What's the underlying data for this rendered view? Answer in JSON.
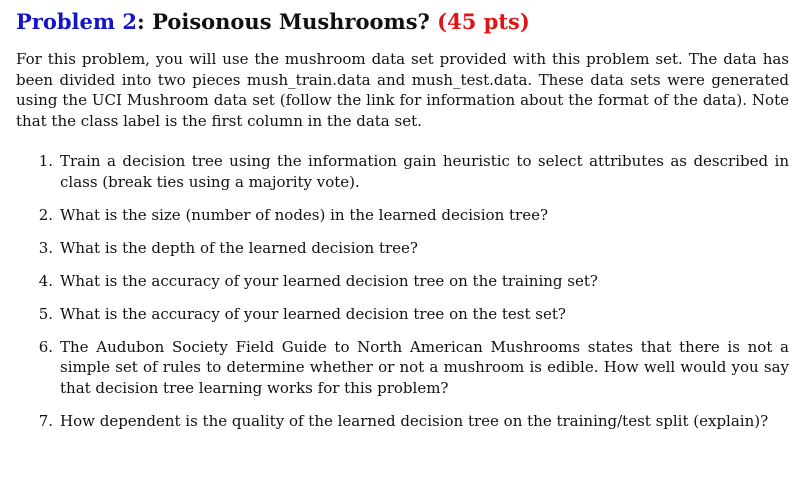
{
  "heading": {
    "prefix": "Problem 2",
    "separator": ": ",
    "title": "Poisonous Mushrooms? ",
    "points": "(45 pts)"
  },
  "intro": "For this problem, you will use the mushroom data set provided with this problem set. The data has been divided into two pieces mush_train.data and mush_test.data. These data sets were generated using the UCI Mushroom data set (follow the link for information about the format of the data). Note that the class label is the first column in the data set.",
  "items": [
    {
      "number": "1.",
      "text": "Train a decision tree using the information gain heuristic to select attributes as described in class (break ties using a majority vote)."
    },
    {
      "number": "2.",
      "text": "What is the size (number of nodes) in the learned decision tree?"
    },
    {
      "number": "3.",
      "text": "What is the depth of the learned decision tree?"
    },
    {
      "number": "4.",
      "text": "What is the accuracy of your learned decision tree on the training set?"
    },
    {
      "number": "5.",
      "text": "What is the accuracy of your learned decision tree on the test set?"
    },
    {
      "number": "6.",
      "text": "The Audubon Society Field Guide to North American Mushrooms states that there is not a simple set of rules to determine whether or not a mushroom is edible. How well would you say that decision tree learning works for this problem?"
    },
    {
      "number": "7.",
      "text": "How dependent is the quality of the learned decision tree on the training/test split (explain)?"
    }
  ],
  "colors": {
    "problem_label": "#1515c8",
    "points": "#e01515",
    "text": "#111111"
  }
}
